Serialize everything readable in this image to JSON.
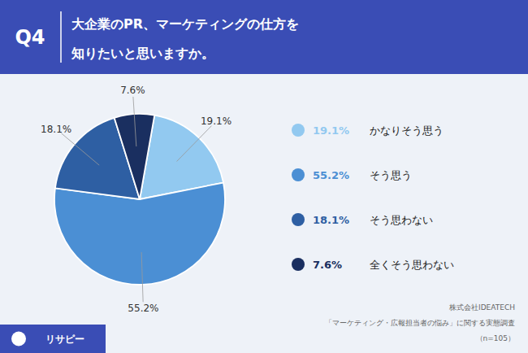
{
  "chart_data": {
    "type": "pie",
    "title": "Q4",
    "subtitle": [
      "大企業のPR、マーケティングの仕方を",
      "知りたいと思いますか。"
    ],
    "categories": [
      "かなりそう思う",
      "そう思う",
      "そう思わない",
      "全くそう思わない"
    ],
    "values": [
      19.1,
      55.2,
      18.1,
      7.6
    ],
    "value_labels": [
      "19.1%",
      "55.2%",
      "18.1%",
      "7.6%"
    ],
    "colors": [
      "#92c9f0",
      "#4b8fd4",
      "#2e5fa3",
      "#1a2f60"
    ],
    "data_labels": true,
    "legend": "right",
    "annotations": [
      "株式会社IDEATECH",
      "「マーケティング・広報担当者の悩み」に関する実態調査",
      "（n=105）",
      "リサピー"
    ]
  }
}
